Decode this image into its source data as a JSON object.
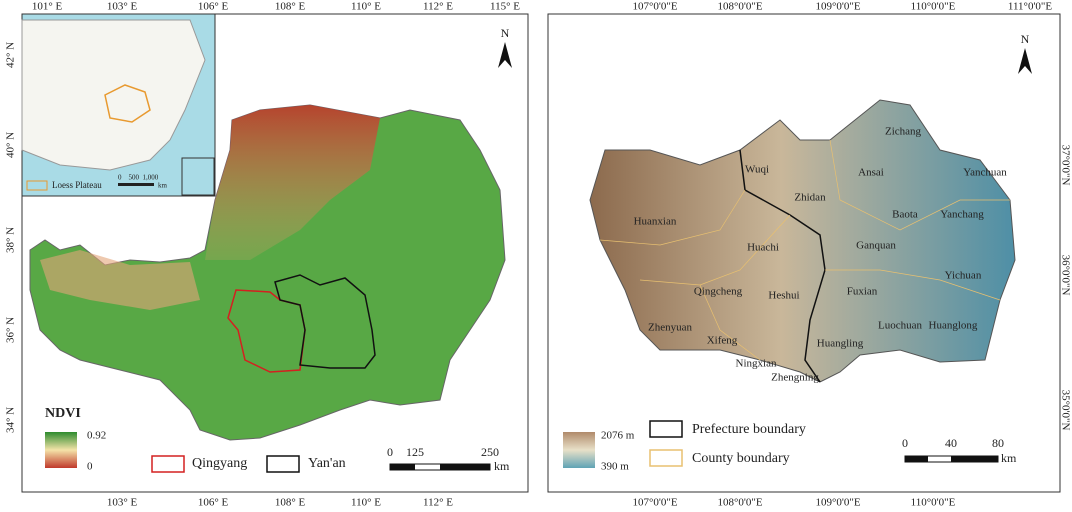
{
  "left_map": {
    "top_ticks": [
      "101° E",
      "103° E",
      "106° E",
      "108° E",
      "110° E",
      "112° E",
      "115° E"
    ],
    "bottom_ticks": [
      "103° E",
      "106° E",
      "108° E",
      "110° E",
      "112° E"
    ],
    "left_ticks": [
      "42° N",
      "40° N",
      "38° N",
      "36° N",
      "34° N"
    ],
    "north": "N",
    "inset": {
      "legend": "Loess Plateau",
      "scale": "0    500  1,000",
      "unit": "km"
    },
    "legend": {
      "title": "NDVI",
      "max": 0.92,
      "min": 0,
      "qingyang": "Qingyang",
      "yanan": "Yan'an"
    },
    "scale": {
      "ticks": [
        0,
        125,
        250
      ],
      "unit": "km"
    }
  },
  "right_map": {
    "top_ticks": [
      "107°0'0\"E",
      "108°0'0\"E",
      "109°0'0\"E",
      "110°0'0\"E",
      "111°0'0\"E"
    ],
    "bottom_ticks": [
      "107°0'0\"E",
      "108°0'0\"E",
      "109°0'0\"E",
      "110°0'0\"E"
    ],
    "right_ticks": [
      "37°0'0\"N",
      "36°0'0\"N",
      "35°0'0\"N"
    ],
    "north": "N",
    "counties": [
      "Zichang",
      "Wuqi",
      "Ansai",
      "Yanchuan",
      "Zhidan",
      "Baota",
      "Yanchang",
      "Huanxian",
      "Huachi",
      "Ganquan",
      "Yichuan",
      "Qingcheng",
      "Heshui",
      "Fuxian",
      "Zhenyuan",
      "Luochuan",
      "Huanglong",
      "Xifeng",
      "Huangling",
      "Ningxian",
      "Zhengning"
    ],
    "legend": {
      "elev_max": "2076 m",
      "elev_min": "390 m",
      "prefecture": "Prefecture boundary",
      "county": "County boundary"
    },
    "scale": {
      "ticks": [
        0,
        40,
        80
      ],
      "unit": "km"
    }
  }
}
